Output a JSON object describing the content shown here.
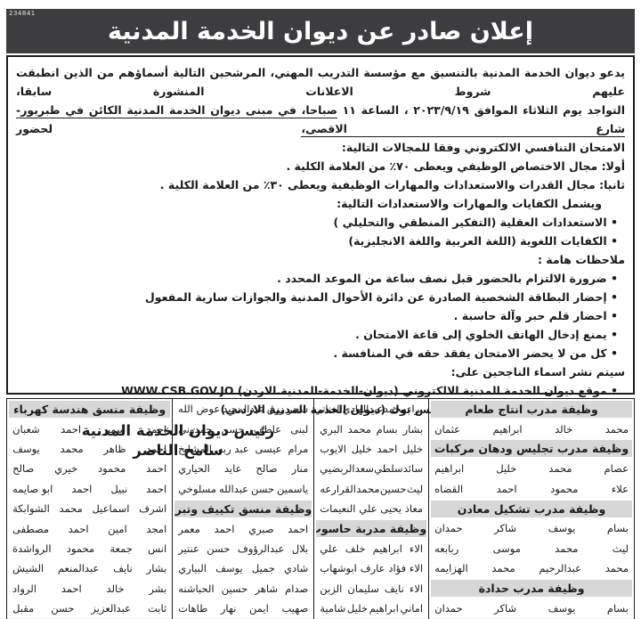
{
  "meta": {
    "ref_number": "234841"
  },
  "header": {
    "title": "إعلان صادر عن ديوان الخدمة المدنية"
  },
  "body": {
    "para1_line1": "يدعو ديوان الخدمة المدنية بالتنسيق مع مؤسسة التدريب المهني، المرشحين التالية أسماؤهم من الذين انطبقت عليهم شروط الاعلانات المنشورة سابقا،",
    "para1_line2_pre": "التواجد يوم الثلاثاء الموافق ٢٠٢٣/٩/١٩ ، الساعة ١١ ",
    "para1_line2_underlined": "صباحا، في مبنى ديوان الخدمة المدنية الكائن في طبربور- شارع الاقصى،",
    "para1_line2_post": " لحضور",
    "para1_line3": "الامتحان التنافسي الالكتروني وفقا للمجالات التالية:",
    "first_field": "أولا: مجال الاختصاص الوظيفي ويعطى ٧٠٪ من العلامة الكلية .",
    "second_field": "ثانيا: مجال القدرات والاستعدادات والمهارات الوظيفية ويعطى ٣٠٪ من العلامة الكلية .",
    "includes_line": "ويشمل الكفايات والمهارات والاستعدادات التالية:",
    "competencies": [
      "• الاستعدادات العقلية (التفكير المنطقي والتحليلي )",
      "• الكفايات اللغوية (اللغة العربية واللغة الانجليزية)"
    ],
    "notes_title": "ملاحظات هامة :",
    "notes": [
      "• ضرورة الالتزام بالحضور قبل نصف ساعة من الموعد المحدد .",
      "• إحضار البطاقة الشخصية الصادرة عن دائرة الأحوال المدنية والجوازات سارية المفعول",
      "• احضار قلم حبر وآلة حاسبة .",
      "• يمنع إدخال الهاتف الخلوي إلى قاعة الامتحان .",
      "• كل من لا يحضر الامتحان يفقد حقه في المنافسة ."
    ],
    "publish_title": "سيتم نشر اسماء الناجحين على:",
    "publish_items": [
      "• موقع ديوان الخدمة المدنية الالكتروني (ديوان-الخدمة-المدنية.الاردن) WWW.CSB.GOV.JO",
      "• صفحة الديوان الرسمية على الفيس بوك (ديوان الخدمة المدنية الاردني)"
    ],
    "signature_title": "رئيس ديوان الخدمة المدنية",
    "signature_name": "سامح الناصر"
  },
  "colors": {
    "banner_bg": "#3d3d40",
    "header_cell_bg": "#d7d7d7",
    "text": "#1b1b1b"
  },
  "table": {
    "columns": [
      {
        "items": [
          {
            "h": "وظيفة مدرب انتاج طعام"
          },
          {
            "n": [
              "محمد",
              "خالد",
              "ابراهيم",
              "عثمان"
            ]
          },
          {
            "h": "وظيفة مدرب تجليس ودهان مركبات"
          },
          {
            "n": [
              "عصام",
              "محمد",
              "خليل",
              "ابراهيم"
            ]
          },
          {
            "n": [
              "علاء",
              "محمود",
              "احمد",
              "القضاه"
            ]
          },
          {
            "h": "وظيفة مدرب تشكيل معادن"
          },
          {
            "n": [
              "بسام",
              "يوسف",
              "شاكر",
              "حمدان"
            ]
          },
          {
            "n": [
              "ليث",
              "محمد",
              "موسى",
              "ربابعه"
            ]
          },
          {
            "n": [
              "محمد",
              "عبدالرحيم",
              "محمد",
              "الهزايمه"
            ]
          },
          {
            "h": "وظيفة مدرب حدادة"
          },
          {
            "n": [
              "بسام",
              "يوسف",
              "شاكر",
              "حمدان"
            ]
          }
        ]
      },
      {
        "items": [
          {
            "n": [
              "براء",
              "محمد",
              "عبدالهادي",
              "العناتي"
            ]
          },
          {
            "n": [
              "بشار",
              "بسام",
              "محمد",
              "البري"
            ]
          },
          {
            "n": [
              "خليل",
              "احمد",
              "خليل",
              "الايوب"
            ]
          },
          {
            "n": [
              "سائد",
              "سلطي",
              "سعد",
              "الربضيي"
            ]
          },
          {
            "n": [
              "ليث",
              "حسين",
              "محمد",
              "القرارعه"
            ]
          },
          {
            "n": [
              "معاذ",
              "يحيى",
              "علي",
              "النعيمات"
            ]
          },
          {
            "h": "وظيفة مدربة حاسوب"
          },
          {
            "n": [
              "الاء",
              "ابراهيم",
              "خلف",
              "علي"
            ]
          },
          {
            "n": [
              "الاء",
              "فؤاد",
              "عارف",
              "ابوشهاب"
            ]
          },
          {
            "n": [
              "الاء",
              "نايف",
              "سليمان",
              "الزبن"
            ]
          },
          {
            "n": [
              "اماني",
              "ابراهيم",
              "خليل",
              "شامية"
            ]
          }
        ]
      },
      {
        "items": [
          {
            "n": [
              "سحر",
              "رزق",
              "عبدالمجيد",
              "عوض الله"
            ]
          },
          {
            "n": [
              "لبنى",
              "عاطف",
              "حسن",
              "حمدوني"
            ]
          },
          {
            "n": [
              "مرام",
              "عيسى",
              "عبد ربه",
              "المشايخ"
            ]
          },
          {
            "n": [
              "منار",
              "صالح",
              "عايد",
              "الحياري"
            ]
          },
          {
            "n": [
              "ياسمين",
              "حسن",
              "عبدالله",
              "مسلوخي"
            ]
          },
          {
            "h": "وظيفة منسق تكييف وتبريد"
          },
          {
            "n": [
              "احمد",
              "صبري",
              "احمد",
              "معمر"
            ]
          },
          {
            "n": [
              "بلال",
              "عبدالرؤوف",
              "حسن",
              "عنتير"
            ]
          },
          {
            "n": [
              "شادي",
              "جميل",
              "يوسف",
              "البياري"
            ]
          },
          {
            "n": [
              "صدام",
              "شاهر",
              "حسين",
              "الحباشنه"
            ]
          },
          {
            "n": [
              "صهيب",
              "ايمن",
              "نهار",
              "طاهات"
            ]
          }
        ]
      },
      {
        "items": [
          {
            "h": "وظيفة منسق هندسة كهرباء"
          },
          {
            "n": [
              "احمد",
              "سمير",
              "احمد",
              "شعبان"
            ]
          },
          {
            "n": [
              "احمد",
              "ظاهر",
              "محمد",
              "يوسف"
            ]
          },
          {
            "n": [
              "احمد",
              "محمود",
              "خيري",
              "صالح"
            ]
          },
          {
            "n": [
              "احمد",
              "نبيل",
              "احمد",
              "ابو صايمه"
            ]
          },
          {
            "n": [
              "اشرف",
              "اسماعيل",
              "محمد",
              "الشوابكة"
            ]
          },
          {
            "n": [
              "امجد",
              "امين",
              "احمد",
              "مصطفى"
            ]
          },
          {
            "n": [
              "انس",
              "جمعة",
              "محمود",
              "الرواشدة"
            ]
          },
          {
            "n": [
              "بشار",
              "نايف",
              "عبدالمنعم",
              "الشيش"
            ]
          },
          {
            "n": [
              "بشر",
              "خالد",
              "احمد",
              "الرواد"
            ]
          },
          {
            "n": [
              "ثابت",
              "عبدالعزيز",
              "حسن",
              "مقبل"
            ]
          }
        ]
      }
    ]
  }
}
